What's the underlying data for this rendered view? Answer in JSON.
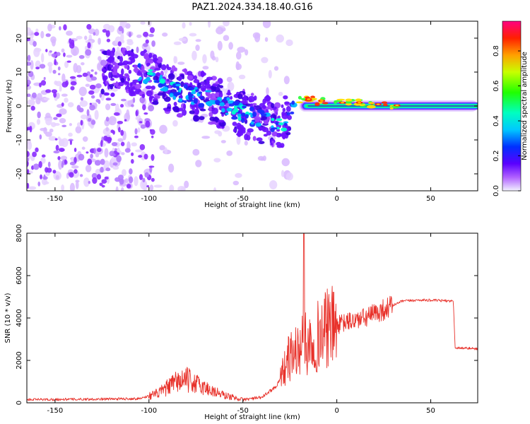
{
  "title": "PAZ1.2024.334.18.40.G16",
  "chart_data": [
    {
      "type": "heatmap",
      "xlabel": "Height of straight line (km)",
      "ylabel": "Frequency (Hz)",
      "xlim": [
        -165,
        75
      ],
      "ylim": [
        -25,
        25
      ],
      "xticks": [
        -150,
        -100,
        -50,
        0,
        50
      ],
      "yticks": [
        -20,
        -10,
        0,
        10,
        20
      ],
      "colorbar": {
        "label": "Normalized spectral amplitude",
        "range": [
          0.0,
          0.97
        ],
        "ticks": [
          0.0,
          0.2,
          0.4,
          0.6,
          0.8
        ]
      },
      "features": {
        "ridge": [
          [
            -110,
            10
          ],
          [
            -100,
            9
          ],
          [
            -90,
            5
          ],
          [
            -80,
            3.5
          ],
          [
            -70,
            2.5
          ],
          [
            -60,
            0
          ],
          [
            -50,
            -2
          ],
          [
            -40,
            -4
          ],
          [
            -30,
            -6
          ],
          [
            -25,
            -3
          ],
          [
            -20,
            2
          ],
          [
            -10,
            1.5
          ],
          [
            0,
            1
          ],
          [
            10,
            1
          ],
          [
            20,
            0.5
          ],
          [
            30,
            0.2
          ],
          [
            40,
            0.1
          ],
          [
            50,
            0.1
          ],
          [
            60,
            0
          ],
          [
            75,
            0
          ]
        ],
        "steady_tone_start_km": -20,
        "steady_tone_freq_hz": 0,
        "scatter_region_km": [
          -165,
          -25
        ],
        "scatter_freq_hz": [
          -25,
          25
        ]
      }
    },
    {
      "type": "line",
      "xlabel": "Height of straight line (km)",
      "ylabel": "SNR (10 * v/v)",
      "xlim": [
        -165,
        75
      ],
      "ylim": [
        0,
        8000
      ],
      "xticks": [
        -150,
        -100,
        -50,
        0,
        50
      ],
      "yticks": [
        0,
        2000,
        4000,
        6000,
        8000
      ],
      "color": "#e8312a",
      "envelope": [
        [
          -165,
          150
        ],
        [
          -120,
          180
        ],
        [
          -105,
          200
        ],
        [
          -95,
          450
        ],
        [
          -85,
          1000
        ],
        [
          -80,
          1100
        ],
        [
          -70,
          700
        ],
        [
          -60,
          350
        ],
        [
          -50,
          150
        ],
        [
          -40,
          250
        ],
        [
          -32,
          800
        ],
        [
          -25,
          2200
        ],
        [
          -18,
          2700
        ],
        [
          -12,
          3000
        ],
        [
          -5,
          3500
        ],
        [
          5,
          3800
        ],
        [
          15,
          4000
        ],
        [
          25,
          4400
        ],
        [
          35,
          4800
        ],
        [
          45,
          4850
        ],
        [
          62,
          4800
        ],
        [
          63,
          2600
        ],
        [
          75,
          2550
        ]
      ],
      "spike": {
        "x": -17.5,
        "y": 8000
      }
    }
  ]
}
